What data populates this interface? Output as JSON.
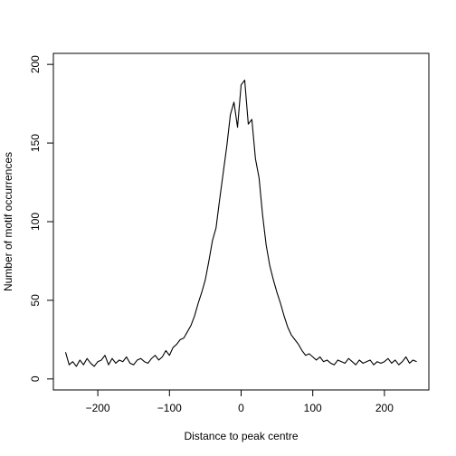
{
  "chart_data": {
    "type": "line",
    "title": "",
    "xlabel": "Distance to peak centre",
    "ylabel": "Number of motif occurrences",
    "xlim": [
      -262,
      262
    ],
    "ylim": [
      -7,
      207
    ],
    "xticks": [
      -200,
      -100,
      0,
      100,
      200
    ],
    "yticks": [
      0,
      50,
      100,
      150,
      200
    ],
    "xtick_labels": [
      "−200",
      "−100",
      "0",
      "100",
      "200"
    ],
    "ytick_labels": [
      "0",
      "50",
      "100",
      "150",
      "200"
    ],
    "grid": false,
    "legend": "none",
    "line_color": "#000000",
    "series": [
      {
        "x": [
          -245,
          -240,
          -235,
          -230,
          -225,
          -220,
          -215,
          -210,
          -205,
          -200,
          -195,
          -190,
          -185,
          -180,
          -175,
          -170,
          -165,
          -160,
          -155,
          -150,
          -145,
          -140,
          -135,
          -130,
          -125,
          -120,
          -115,
          -110,
          -105,
          -100,
          -95,
          -90,
          -85,
          -80,
          -75,
          -70,
          -65,
          -60,
          -55,
          -50,
          -45,
          -40,
          -35,
          -30,
          -25,
          -20,
          -15,
          -10,
          -5,
          0,
          5,
          10,
          15,
          20,
          25,
          30,
          35,
          40,
          45,
          50,
          55,
          60,
          65,
          70,
          75,
          80,
          85,
          90,
          95,
          100,
          105,
          110,
          115,
          120,
          125,
          130,
          135,
          140,
          145,
          150,
          155,
          160,
          165,
          170,
          175,
          180,
          185,
          190,
          195,
          200,
          205,
          210,
          215,
          220,
          225,
          230,
          235,
          240,
          245
        ],
        "values": [
          17,
          9,
          11,
          8,
          12,
          9,
          13,
          10,
          8,
          11,
          12,
          15,
          9,
          13,
          10,
          12,
          11,
          14,
          10,
          9,
          12,
          13,
          11,
          10,
          13,
          15,
          12,
          14,
          18,
          15,
          20,
          22,
          25,
          26,
          30,
          34,
          40,
          48,
          55,
          63,
          75,
          88,
          96,
          114,
          131,
          148,
          168,
          176,
          160,
          187,
          190,
          162,
          165,
          140,
          128,
          104,
          85,
          72,
          63,
          55,
          48,
          40,
          33,
          28,
          25,
          22,
          18,
          15,
          16,
          14,
          12,
          14,
          11,
          12,
          10,
          9,
          12,
          11,
          10,
          13,
          11,
          9,
          12,
          10,
          11,
          12,
          9,
          11,
          10,
          11,
          13,
          10,
          12,
          9,
          11,
          14,
          10,
          12,
          11
        ]
      }
    ]
  }
}
